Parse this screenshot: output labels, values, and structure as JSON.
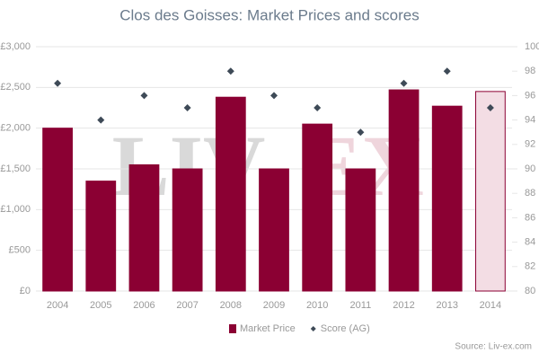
{
  "chart_data": {
    "type": "bar",
    "title": "Clos des Goisses: Market Prices and scores",
    "categories": [
      "2004",
      "2005",
      "2006",
      "2007",
      "2008",
      "2009",
      "2010",
      "2011",
      "2012",
      "2013",
      "2014"
    ],
    "series": [
      {
        "name": "Market Price",
        "type": "bar",
        "color": "#8b0033",
        "colors": [
          "#8b0033",
          "#8b0033",
          "#8b0033",
          "#8b0033",
          "#8b0033",
          "#8b0033",
          "#8b0033",
          "#8b0033",
          "#8b0033",
          "#8b0033",
          "#f3dde4"
        ],
        "values": [
          2000,
          1350,
          1550,
          1500,
          2380,
          1500,
          2050,
          1500,
          2470,
          2270,
          2450
        ]
      },
      {
        "name": "Score (AG)",
        "type": "scatter",
        "axis": "y2",
        "color": "#3e4a57",
        "values": [
          97,
          94,
          96,
          95,
          98,
          96,
          95,
          93,
          97,
          98,
          95
        ]
      }
    ],
    "ylim": [
      0,
      3000
    ],
    "yticks": [
      {
        "value": 0,
        "label": "£0"
      },
      {
        "value": 500,
        "label": "£500"
      },
      {
        "value": 1000,
        "label": "£1,000"
      },
      {
        "value": 1500,
        "label": "£1,500"
      },
      {
        "value": 2000,
        "label": "£2,000"
      },
      {
        "value": 2500,
        "label": "£2,500"
      },
      {
        "value": 3000,
        "label": "£3,000"
      }
    ],
    "y2lim": [
      80,
      100
    ],
    "y2ticks": [
      80,
      82,
      84,
      86,
      88,
      90,
      92,
      94,
      96,
      98,
      100
    ],
    "grid": true,
    "legend": "bottom",
    "watermark": [
      "LIV",
      "EX"
    ],
    "source": "Source: Liv-ex.com"
  }
}
